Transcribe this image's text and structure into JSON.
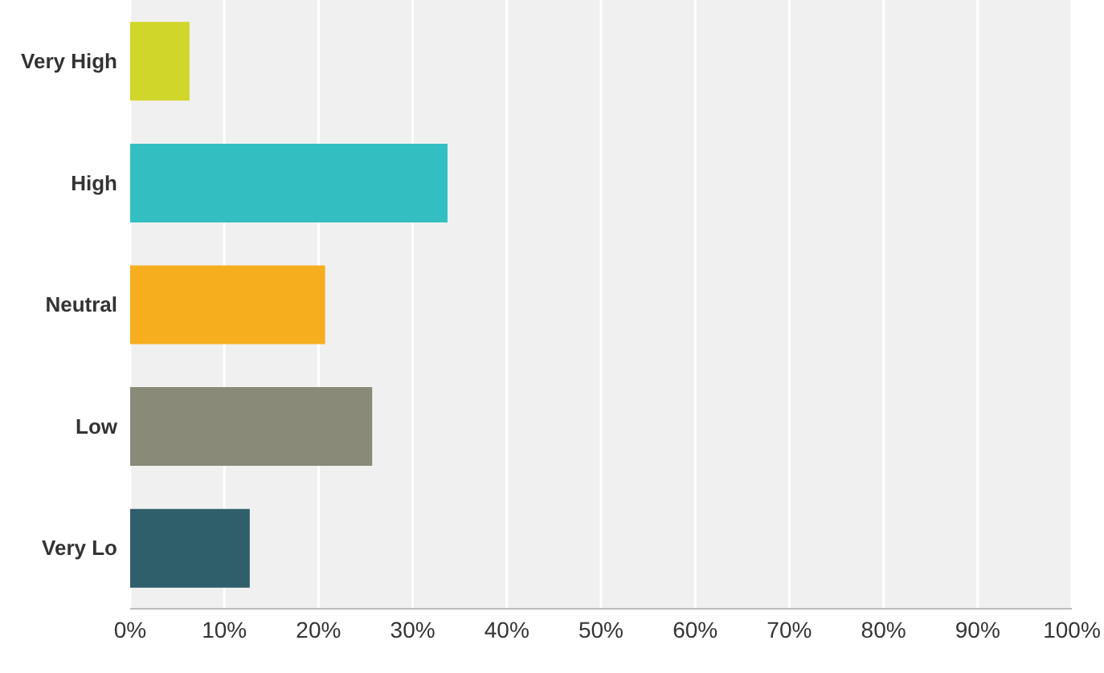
{
  "chart_data": {
    "type": "bar",
    "orientation": "horizontal",
    "categories": [
      "Very High",
      "High",
      "Neutral",
      "Low",
      "Very Lo"
    ],
    "values": [
      6.3,
      33.7,
      20.7,
      25.7,
      12.7
    ],
    "colors": [
      "#d0d62a",
      "#33bfc1",
      "#f7ae1e",
      "#898a78",
      "#2e5f6b"
    ],
    "xlim": [
      0,
      100
    ],
    "xticks": [
      {
        "value": 0,
        "label": "0%"
      },
      {
        "value": 10,
        "label": "10%"
      },
      {
        "value": 20,
        "label": "20%"
      },
      {
        "value": 30,
        "label": "30%"
      },
      {
        "value": 40,
        "label": "40%"
      },
      {
        "value": 50,
        "label": "50%"
      },
      {
        "value": 60,
        "label": "60%"
      },
      {
        "value": 70,
        "label": "70%"
      },
      {
        "value": 80,
        "label": "80%"
      },
      {
        "value": 90,
        "label": "90%"
      },
      {
        "value": 100,
        "label": "100%"
      }
    ],
    "grid": "x"
  }
}
